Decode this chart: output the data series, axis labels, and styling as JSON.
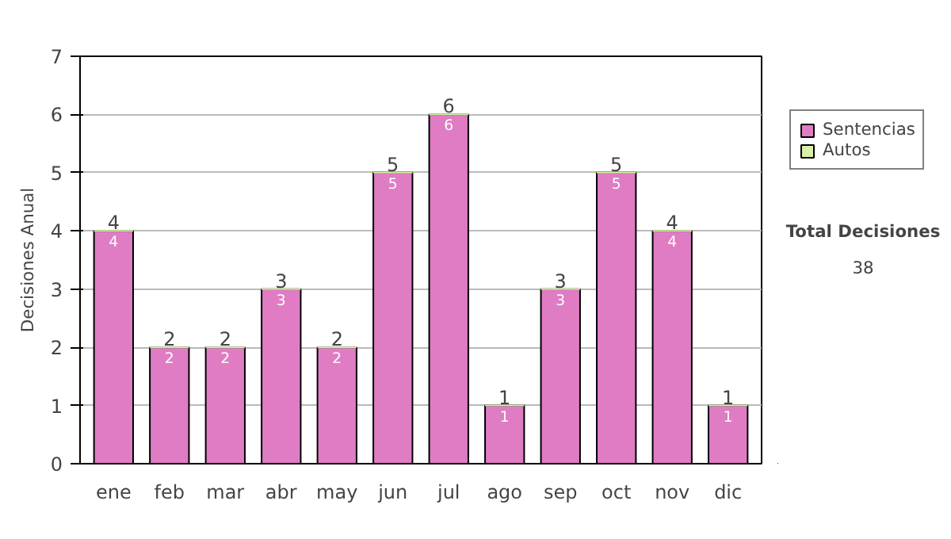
{
  "chart_data": {
    "type": "bar",
    "ylabel": "Decisiones Anual",
    "categories": [
      "ene",
      "feb",
      "mar",
      "abr",
      "may",
      "jun",
      "jul",
      "ago",
      "sep",
      "oct",
      "nov",
      "dic"
    ],
    "stacked": true,
    "series": [
      {
        "name": "Sentencias",
        "color": "#e07cc4",
        "values": [
          4,
          2,
          2,
          3,
          2,
          5,
          6,
          1,
          3,
          5,
          4,
          1
        ],
        "value_labels": [
          "4",
          "2",
          "2",
          "3",
          "2",
          "5",
          "6",
          "1",
          "3",
          "5",
          "4",
          "1"
        ]
      },
      {
        "name": "Autos",
        "color": "#d8f0a8",
        "values": [
          0,
          0,
          0,
          0,
          0,
          0,
          0,
          0,
          0,
          0,
          0,
          0
        ]
      }
    ],
    "totals": [
      "4",
      "2",
      "2",
      "3",
      "2",
      "5",
      "6",
      "1",
      "3",
      "5",
      "4",
      "1"
    ],
    "ylim": [
      0,
      7
    ],
    "yticks": [
      0,
      1,
      2,
      3,
      4,
      5,
      6,
      7
    ],
    "grid": "y",
    "legend": "right",
    "annotations": [
      "Total Decisiones",
      "38"
    ]
  }
}
